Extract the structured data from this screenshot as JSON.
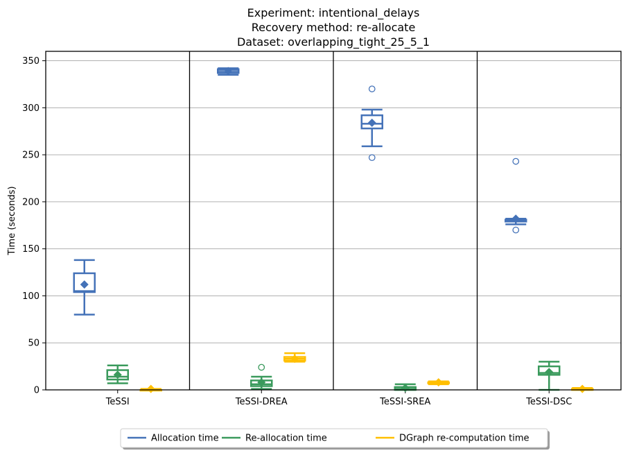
{
  "chart_data": {
    "type": "box",
    "title_lines": [
      "Experiment: intentional_delays",
      "Recovery method: re-allocate",
      "Dataset: overlapping_tight_25_5_1"
    ],
    "xlabel": "",
    "ylabel": "Time (seconds)",
    "ylim": [
      0,
      360
    ],
    "yticks": [
      0,
      50,
      100,
      150,
      200,
      250,
      300,
      350
    ],
    "grid": "horizontal",
    "legend_position": "bottom-center",
    "categories": [
      "TeSSI",
      "TeSSI-DREA",
      "TeSSI-SREA",
      "TeSSI-DSC"
    ],
    "series": [
      {
        "name": "Allocation time",
        "color": "#4472b8",
        "boxes": [
          {
            "whisker_low": 80,
            "q1": 104,
            "median": 105,
            "q3": 124,
            "whisker_high": 138,
            "mean": 112,
            "outliers": []
          },
          {
            "whisker_low": 335,
            "q1": 337,
            "median": 339,
            "q3": 341,
            "whisker_high": 342,
            "mean": 339,
            "outliers": []
          },
          {
            "whisker_low": 259,
            "q1": 278,
            "median": 283,
            "q3": 292,
            "whisker_high": 298,
            "mean": 284,
            "outliers": [
              247,
              320
            ]
          },
          {
            "whisker_low": 176,
            "q1": 179,
            "median": 180,
            "q3": 181,
            "whisker_high": 182,
            "mean": 182,
            "outliers": [
              170,
              243
            ]
          }
        ]
      },
      {
        "name": "Re-allocation time",
        "color": "#3a9a5c",
        "boxes": [
          {
            "whisker_low": 7,
            "q1": 11,
            "median": 14,
            "q3": 21,
            "whisker_high": 26,
            "mean": 16,
            "outliers": []
          },
          {
            "whisker_low": 1,
            "q1": 4,
            "median": 6,
            "q3": 10,
            "whisker_high": 14,
            "mean": 8,
            "outliers": [
              24
            ]
          },
          {
            "whisker_low": 0,
            "q1": 0,
            "median": 1,
            "q3": 3,
            "whisker_high": 6,
            "mean": 2,
            "outliers": []
          },
          {
            "whisker_low": 0,
            "q1": 16,
            "median": 18,
            "q3": 25,
            "whisker_high": 30,
            "mean": 19,
            "outliers": []
          }
        ]
      },
      {
        "name": "DGraph re-computation time",
        "color": "#ffbf00",
        "boxes": [
          {
            "whisker_low": 0,
            "q1": 0,
            "median": 0,
            "q3": 0,
            "whisker_high": 1,
            "mean": 1,
            "outliers": []
          },
          {
            "whisker_low": 30,
            "q1": 31,
            "median": 33,
            "q3": 35,
            "whisker_high": 39,
            "mean": 33,
            "outliers": []
          },
          {
            "whisker_low": 6,
            "q1": 7,
            "median": 8,
            "q3": 8,
            "whisker_high": 9,
            "mean": 8,
            "outliers": []
          },
          {
            "whisker_low": 0,
            "q1": 0,
            "median": 1,
            "q3": 1,
            "whisker_high": 2,
            "mean": 1,
            "outliers": []
          }
        ]
      }
    ]
  }
}
